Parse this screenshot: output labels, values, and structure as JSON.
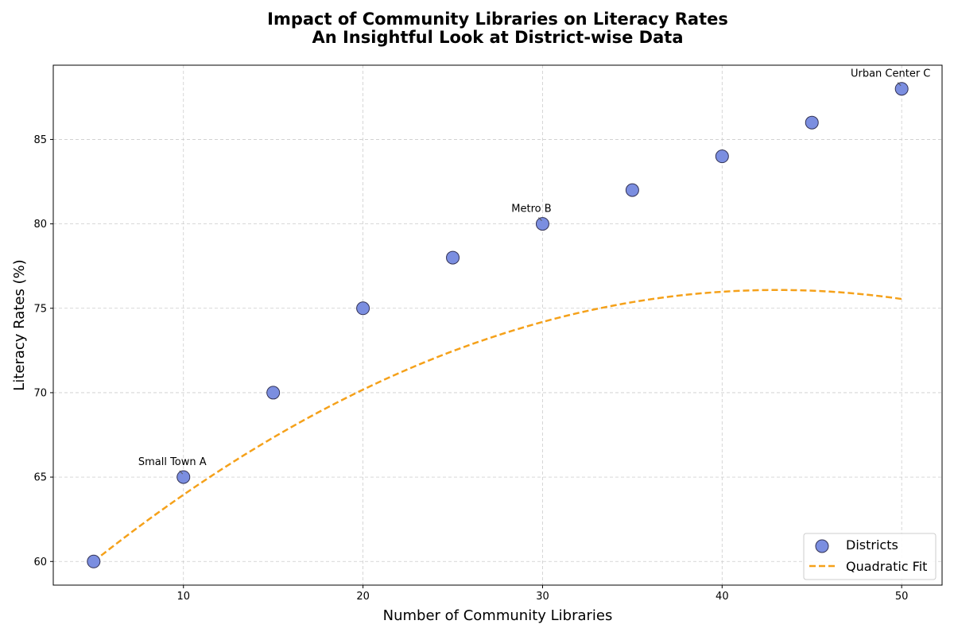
{
  "chart_data": {
    "type": "scatter",
    "title": "Impact of Community Libraries on Literacy Rates",
    "subtitle": "An Insightful Look at District-wise Data",
    "xlabel": "Number of Community Libraries",
    "ylabel": "Literacy Rates (%)",
    "xlim": [
      2.75,
      52.25
    ],
    "ylim": [
      58.6,
      89.4
    ],
    "xticks": [
      10,
      20,
      30,
      40,
      50
    ],
    "yticks": [
      60,
      65,
      70,
      75,
      80,
      85
    ],
    "grid": true,
    "legend_position": "lower-right",
    "series": [
      {
        "name": "Districts",
        "kind": "scatter",
        "color": "#7b8ee0",
        "edge_color": "#333355",
        "x": [
          5,
          10,
          15,
          20,
          25,
          30,
          35,
          40,
          45,
          50
        ],
        "y": [
          60,
          65,
          70,
          75,
          78,
          80,
          82,
          84,
          86,
          88
        ]
      },
      {
        "name": "Quadratic Fit",
        "kind": "line",
        "style": "dashed",
        "color": "#f5a11a",
        "x_range": [
          5,
          50
        ],
        "coefficients": [
          -0.0111,
          0.956,
          55.5
        ]
      }
    ],
    "annotations": [
      {
        "text": "Small Town A",
        "x": 10,
        "y": 65
      },
      {
        "text": "Metro B",
        "x": 30,
        "y": 80
      },
      {
        "text": "Urban Center C",
        "x": 50,
        "y": 88
      }
    ]
  }
}
